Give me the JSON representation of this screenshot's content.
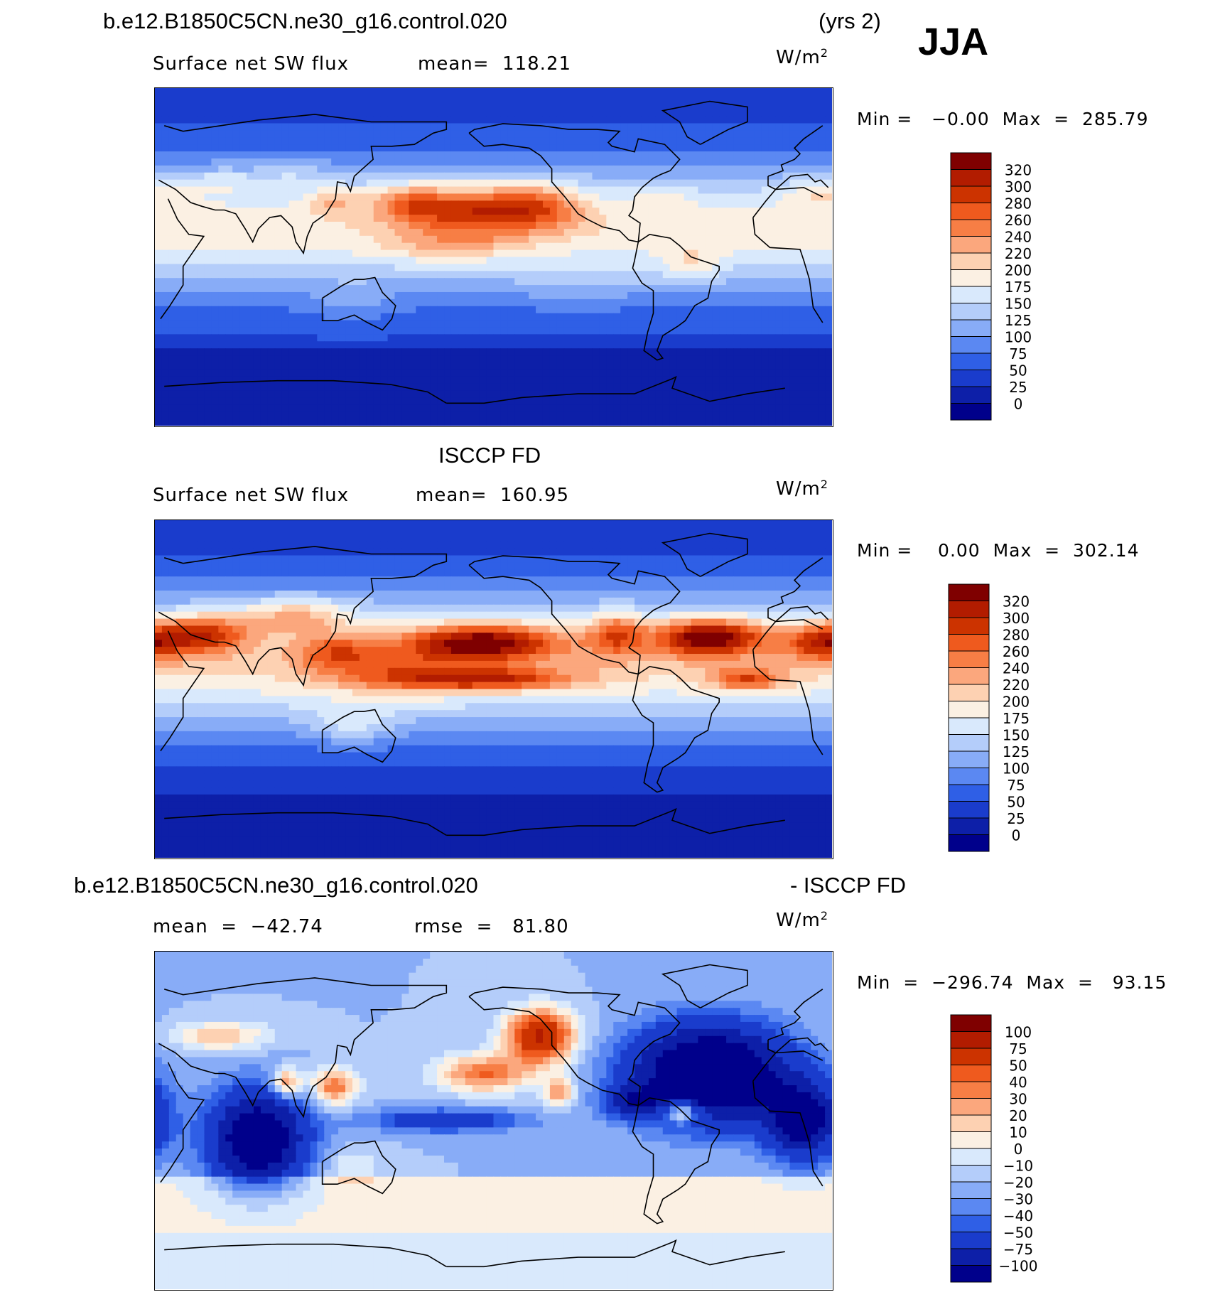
{
  "header": {
    "case_name": "b.e12.B1850C5CN.ne30_g16.control.020",
    "years": "(yrs 2)",
    "season": "JJA"
  },
  "panels": [
    {
      "id": "model",
      "field_label": "Surface net SW flux",
      "mean_text": "mean=  118.21",
      "units": "W/m",
      "units_sup": "2",
      "minmax_text": "Min =   −0.00  Max  =  285.79",
      "colorbar": {
        "levels": [
          "320",
          "300",
          "280",
          "260",
          "240",
          "220",
          "200",
          "175",
          "150",
          "125",
          "100",
          "75",
          "50",
          "25",
          "0"
        ],
        "colors": [
          "#7f0000",
          "#b21c00",
          "#cc3300",
          "#ef5a1e",
          "#f77e45",
          "#fba77d",
          "#fdd1b2",
          "#fbf0e3",
          "#d9e9fc",
          "#b4cdfa",
          "#88acf7",
          "#5b88f2",
          "#2f5fe6",
          "#1a3ccc",
          "#0d1fa8",
          "#00008b"
        ]
      },
      "map_image_description_hidden": "",
      "field": "model"
    },
    {
      "id": "obs",
      "section_title": "ISCCP FD",
      "field_label": "Surface net SW flux",
      "mean_text": "mean=  160.95",
      "units": "W/m",
      "units_sup": "2",
      "minmax_text": "Min =    0.00  Max  =  302.14",
      "colorbar": {
        "levels": [
          "320",
          "300",
          "280",
          "260",
          "240",
          "220",
          "200",
          "175",
          "150",
          "125",
          "100",
          "75",
          "50",
          "25",
          "0"
        ],
        "colors": [
          "#7f0000",
          "#b21c00",
          "#cc3300",
          "#ef5a1e",
          "#f77e45",
          "#fba77d",
          "#fdd1b2",
          "#fbf0e3",
          "#d9e9fc",
          "#b4cdfa",
          "#88acf7",
          "#5b88f2",
          "#2f5fe6",
          "#1a3ccc",
          "#0d1fa8",
          "#00008b"
        ]
      },
      "field": "obs"
    },
    {
      "id": "diff",
      "section_title_left": "b.e12.B1850C5CN.ne30_g16.control.020",
      "section_title_right": "- ISCCP FD",
      "mean_text": "mean  =  −42.74",
      "rmse_text": "rmse  =   81.80",
      "units": "W/m",
      "units_sup": "2",
      "minmax_text": "Min  =  −296.74  Max  =   93.15",
      "colorbar": {
        "levels": [
          "100",
          "75",
          "50",
          "40",
          "30",
          "20",
          "10",
          "0",
          "−10",
          "−20",
          "−30",
          "−40",
          "−50",
          "−75",
          "−100"
        ],
        "colors": [
          "#7f0000",
          "#b21c00",
          "#cc3300",
          "#ef5a1e",
          "#f77e45",
          "#fba77d",
          "#fdd1b2",
          "#fbf0e3",
          "#d9e9fc",
          "#b4cdfa",
          "#88acf7",
          "#5b88f2",
          "#2f5fe6",
          "#1a3ccc",
          "#0d1fa8",
          "#00008b"
        ]
      },
      "field": "diff"
    }
  ]
}
